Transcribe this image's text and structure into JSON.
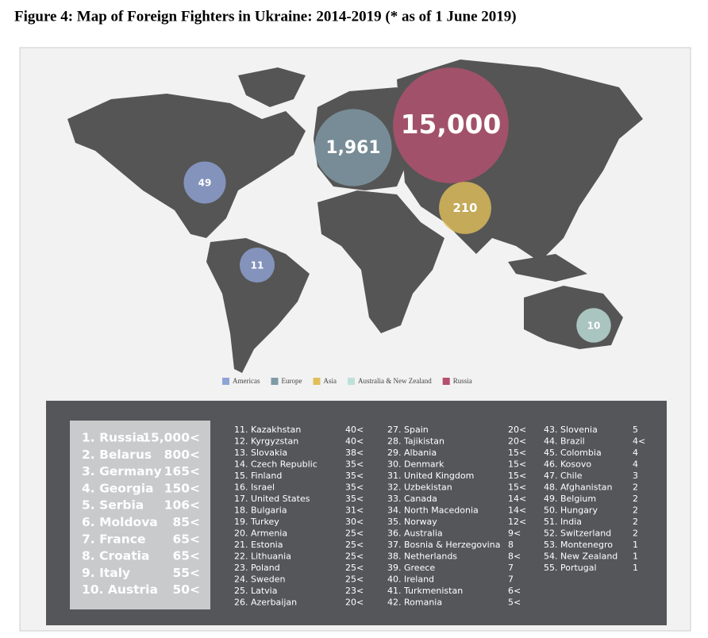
{
  "title": "Figure 4: Map of Foreign Fighters in Ukraine: 2014-2019 (* as of 1 June 2019)",
  "legend": [
    {
      "name": "Americas",
      "color": "#8fa3d6"
    },
    {
      "name": "Europe",
      "color": "#7f9aa6"
    },
    {
      "name": "Asia",
      "color": "#e0bf5a"
    },
    {
      "name": "Australia & New Zealand",
      "color": "#bfe0da"
    },
    {
      "name": "Russia",
      "color": "#b5506f"
    }
  ],
  "bubbles": [
    {
      "value": 15000,
      "label": "15,000",
      "group": 4
    },
    {
      "value": 1961,
      "label": "1,961",
      "group": 1
    },
    {
      "value": 210,
      "label": "210",
      "group": 2
    },
    {
      "value": 49,
      "label": "49",
      "group": 0
    },
    {
      "value": 11,
      "label": "11",
      "group": 0
    },
    {
      "value": 10,
      "label": "10",
      "group": 3
    }
  ],
  "top_list": [
    [
      "1. Russia",
      "15,000<"
    ],
    [
      "2. Belarus",
      "800<"
    ],
    [
      "3. Germany",
      "165<"
    ],
    [
      "4. Georgia",
      "150<"
    ],
    [
      "5. Serbia",
      "106<"
    ],
    [
      "6. Moldova",
      "85<"
    ],
    [
      "7. France",
      "65<"
    ],
    [
      "8. Croatia",
      "65<"
    ],
    [
      "9. Italy",
      "55<"
    ],
    [
      "10. Austria",
      "50<"
    ]
  ],
  "columns": [
    [
      [
        "11. Kazakhstan",
        "40<"
      ],
      [
        "12. Kyrgyzstan",
        "40<"
      ],
      [
        "13. Slovakia",
        "38<"
      ],
      [
        "14. Czech Republic",
        "35<"
      ],
      [
        "15. Finland",
        "35<"
      ],
      [
        "16. Israel",
        "35<"
      ],
      [
        "17. United States",
        "35<"
      ],
      [
        "18. Bulgaria",
        "31<"
      ],
      [
        "19. Turkey",
        "30<"
      ],
      [
        "20. Armenia",
        "25<"
      ],
      [
        "21. Estonia",
        "25<"
      ],
      [
        "22. Lithuania",
        "25<"
      ],
      [
        "23. Poland",
        "25<"
      ],
      [
        "24. Sweden",
        "25<"
      ],
      [
        "25. Latvia",
        "23<"
      ],
      [
        "26. Azerbaijan",
        "20<"
      ]
    ],
    [
      [
        "27. Spain",
        "20<"
      ],
      [
        "28. Tajikistan",
        "20<"
      ],
      [
        "29. Albania",
        "15<"
      ],
      [
        "30. Denmark",
        "15<"
      ],
      [
        "31. United Kingdom",
        "15<"
      ],
      [
        "32. Uzbekistan",
        "15<"
      ],
      [
        "33. Canada",
        "14<"
      ],
      [
        "34. North Macedonia",
        "14<"
      ],
      [
        "35. Norway",
        "12<"
      ],
      [
        "36. Australia",
        "9<"
      ],
      [
        "37. Bosnia & Herzegovina",
        "8"
      ],
      [
        "38. Netherlands",
        "8<"
      ],
      [
        "39. Greece",
        "7"
      ],
      [
        "40. Ireland",
        "7"
      ],
      [
        "41. Turkmenistan",
        "6<"
      ],
      [
        "42. Romania",
        "5<"
      ]
    ],
    [
      [
        "43. Slovenia",
        "5"
      ],
      [
        "44. Brazil",
        "4<"
      ],
      [
        "45. Colombia",
        "4"
      ],
      [
        "46. Kosovo",
        "4"
      ],
      [
        "47. Chile",
        "3"
      ],
      [
        "48. Afghanistan",
        "2"
      ],
      [
        "49. Belgium",
        "2"
      ],
      [
        "50. Hungary",
        "2"
      ],
      [
        "51. India",
        "2"
      ],
      [
        "52. Switzerland",
        "2"
      ],
      [
        "53. Montenegro",
        "1"
      ],
      [
        "54. New Zealand",
        "1"
      ],
      [
        "55. Portugal",
        "1"
      ]
    ]
  ]
}
